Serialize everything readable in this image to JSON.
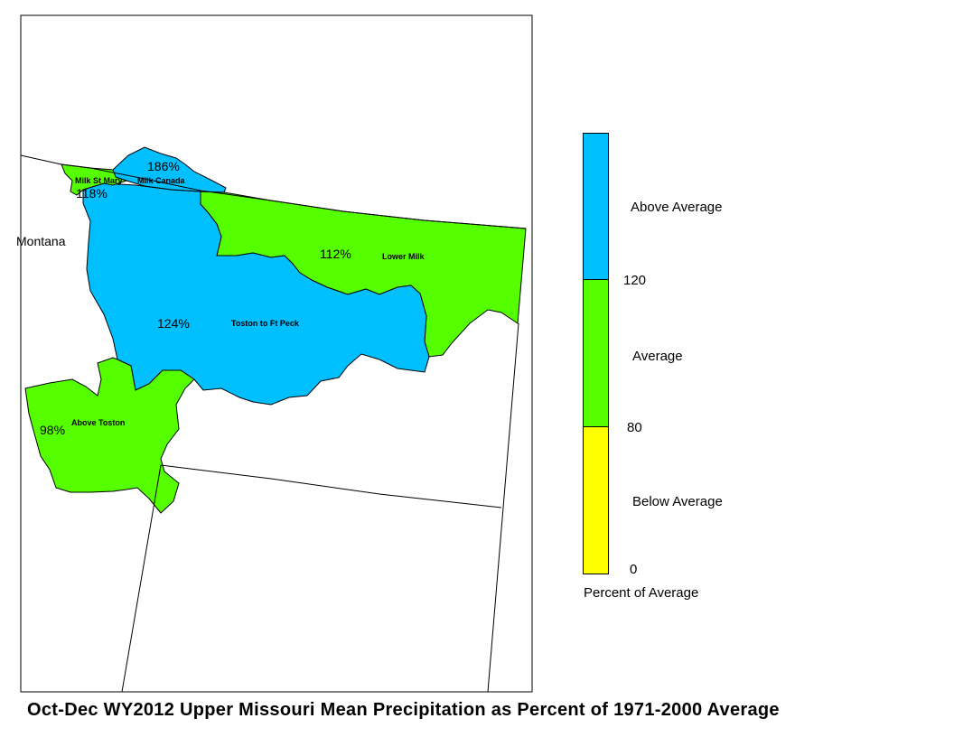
{
  "map": {
    "state_label": "Montana",
    "basins": [
      {
        "name": "Milk St Mary",
        "percent": "118%",
        "category": "average"
      },
      {
        "name": "Milk Canada",
        "percent": "186%",
        "category": "above"
      },
      {
        "name": "Lower Milk",
        "percent": "112%",
        "category": "average"
      },
      {
        "name": "Toston to Ft Peck",
        "percent": "124%",
        "category": "above"
      },
      {
        "name": "Above Toston",
        "percent": "98%",
        "category": "average"
      }
    ]
  },
  "legend": {
    "title": "Percent of Average",
    "classes": [
      {
        "label": "Above Average",
        "color": "#00bfff"
      },
      {
        "label": "Average",
        "color": "#55ff00"
      },
      {
        "label": "Below Average",
        "color": "#ffff00"
      }
    ],
    "breaks": [
      "120",
      "80",
      "0"
    ]
  },
  "title": "Oct-Dec WY2012 Upper Missouri Mean Precipitation as Percent of 1971-2000 Average"
}
